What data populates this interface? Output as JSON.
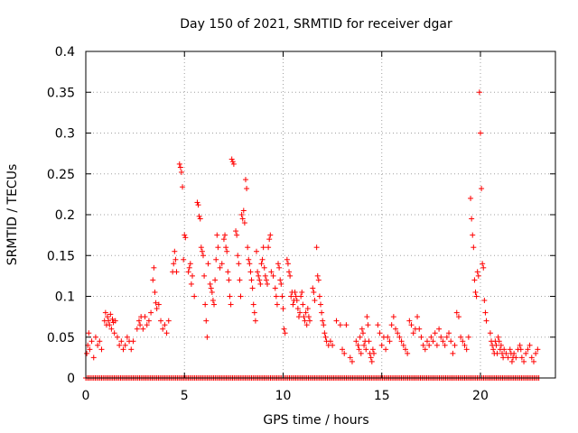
{
  "chart_data": {
    "type": "scatter",
    "title": "Day 150 of 2021, SRMTID for receiver dgar",
    "xlabel": "GPS time / hours",
    "ylabel": "SRMTID / TECUs",
    "xlim": [
      0,
      23.8
    ],
    "ylim": [
      0,
      0.4
    ],
    "xticks": [
      0,
      5,
      10,
      15,
      20
    ],
    "yticks": [
      0,
      0.05,
      0.1,
      0.15,
      0.2,
      0.25,
      0.3,
      0.35,
      0.4
    ],
    "ytick_labels": [
      "0",
      "0.05",
      "0.1",
      "0.15",
      "0.2",
      "0.25",
      "0.3",
      "0.35",
      "0.4"
    ],
    "grid": true,
    "marker": "+",
    "color": "#ff0000",
    "zero_row_range": [
      0.0,
      23.0
    ],
    "zero_row_step": 0.08,
    "series": [
      {
        "name": "SRMTID",
        "points": [
          [
            0.05,
            0.03
          ],
          [
            0.1,
            0.04
          ],
          [
            0.15,
            0.055
          ],
          [
            0.2,
            0.035
          ],
          [
            0.3,
            0.045
          ],
          [
            0.4,
            0.025
          ],
          [
            0.5,
            0.05
          ],
          [
            0.6,
            0.04
          ],
          [
            0.7,
            0.045
          ],
          [
            0.8,
            0.035
          ],
          [
            0.95,
            0.07
          ],
          [
            1.0,
            0.08
          ],
          [
            1.05,
            0.065
          ],
          [
            1.1,
            0.075
          ],
          [
            1.15,
            0.07
          ],
          [
            1.2,
            0.065
          ],
          [
            1.25,
            0.078
          ],
          [
            1.3,
            0.06
          ],
          [
            1.35,
            0.072
          ],
          [
            1.4,
            0.068
          ],
          [
            1.45,
            0.055
          ],
          [
            1.5,
            0.07
          ],
          [
            1.6,
            0.05
          ],
          [
            1.7,
            0.04
          ],
          [
            1.8,
            0.045
          ],
          [
            1.9,
            0.035
          ],
          [
            2.0,
            0.04
          ],
          [
            2.1,
            0.05
          ],
          [
            2.2,
            0.045
          ],
          [
            2.3,
            0.035
          ],
          [
            2.4,
            0.045
          ],
          [
            2.6,
            0.06
          ],
          [
            2.7,
            0.07
          ],
          [
            2.75,
            0.065
          ],
          [
            2.8,
            0.075
          ],
          [
            2.9,
            0.06
          ],
          [
            3.0,
            0.075
          ],
          [
            3.1,
            0.065
          ],
          [
            3.2,
            0.07
          ],
          [
            3.3,
            0.08
          ],
          [
            3.4,
            0.12
          ],
          [
            3.45,
            0.135
          ],
          [
            3.5,
            0.105
          ],
          [
            3.55,
            0.092
          ],
          [
            3.6,
            0.085
          ],
          [
            3.7,
            0.09
          ],
          [
            3.8,
            0.07
          ],
          [
            3.9,
            0.06
          ],
          [
            4.0,
            0.065
          ],
          [
            4.1,
            0.055
          ],
          [
            4.2,
            0.07
          ],
          [
            4.4,
            0.13
          ],
          [
            4.45,
            0.14
          ],
          [
            4.5,
            0.155
          ],
          [
            4.55,
            0.145
          ],
          [
            4.6,
            0.13
          ],
          [
            4.75,
            0.262
          ],
          [
            4.8,
            0.258
          ],
          [
            4.85,
            0.252
          ],
          [
            4.9,
            0.234
          ],
          [
            4.95,
            0.145
          ],
          [
            5.0,
            0.175
          ],
          [
            5.05,
            0.172
          ],
          [
            5.2,
            0.13
          ],
          [
            5.25,
            0.135
          ],
          [
            5.3,
            0.14
          ],
          [
            5.35,
            0.115
          ],
          [
            5.4,
            0.125
          ],
          [
            5.5,
            0.1
          ],
          [
            5.65,
            0.215
          ],
          [
            5.7,
            0.212
          ],
          [
            5.75,
            0.198
          ],
          [
            5.8,
            0.195
          ],
          [
            5.85,
            0.16
          ],
          [
            5.9,
            0.155
          ],
          [
            5.95,
            0.15
          ],
          [
            6.0,
            0.125
          ],
          [
            6.05,
            0.09
          ],
          [
            6.1,
            0.07
          ],
          [
            6.15,
            0.05
          ],
          [
            6.2,
            0.14
          ],
          [
            6.3,
            0.115
          ],
          [
            6.35,
            0.11
          ],
          [
            6.4,
            0.105
          ],
          [
            6.45,
            0.095
          ],
          [
            6.5,
            0.09
          ],
          [
            6.55,
            0.12
          ],
          [
            6.6,
            0.145
          ],
          [
            6.65,
            0.175
          ],
          [
            6.7,
            0.16
          ],
          [
            6.8,
            0.135
          ],
          [
            6.9,
            0.14
          ],
          [
            7.0,
            0.17
          ],
          [
            7.05,
            0.175
          ],
          [
            7.1,
            0.16
          ],
          [
            7.15,
            0.155
          ],
          [
            7.2,
            0.13
          ],
          [
            7.25,
            0.12
          ],
          [
            7.3,
            0.1
          ],
          [
            7.35,
            0.09
          ],
          [
            7.4,
            0.268
          ],
          [
            7.45,
            0.265
          ],
          [
            7.5,
            0.262
          ],
          [
            7.6,
            0.18
          ],
          [
            7.65,
            0.175
          ],
          [
            7.7,
            0.15
          ],
          [
            7.75,
            0.14
          ],
          [
            7.8,
            0.12
          ],
          [
            7.85,
            0.1
          ],
          [
            7.9,
            0.2
          ],
          [
            7.95,
            0.195
          ],
          [
            8.0,
            0.205
          ],
          [
            8.05,
            0.19
          ],
          [
            8.1,
            0.243
          ],
          [
            8.15,
            0.232
          ],
          [
            8.2,
            0.16
          ],
          [
            8.25,
            0.145
          ],
          [
            8.3,
            0.14
          ],
          [
            8.35,
            0.13
          ],
          [
            8.4,
            0.12
          ],
          [
            8.45,
            0.11
          ],
          [
            8.5,
            0.09
          ],
          [
            8.55,
            0.08
          ],
          [
            8.6,
            0.07
          ],
          [
            8.65,
            0.155
          ],
          [
            8.7,
            0.13
          ],
          [
            8.75,
            0.125
          ],
          [
            8.8,
            0.12
          ],
          [
            8.85,
            0.115
          ],
          [
            8.9,
            0.14
          ],
          [
            8.95,
            0.145
          ],
          [
            9.0,
            0.16
          ],
          [
            9.05,
            0.135
          ],
          [
            9.1,
            0.125
          ],
          [
            9.15,
            0.12
          ],
          [
            9.2,
            0.115
          ],
          [
            9.25,
            0.16
          ],
          [
            9.3,
            0.17
          ],
          [
            9.35,
            0.175
          ],
          [
            9.4,
            0.13
          ],
          [
            9.5,
            0.125
          ],
          [
            9.6,
            0.11
          ],
          [
            9.65,
            0.1
          ],
          [
            9.7,
            0.09
          ],
          [
            9.75,
            0.14
          ],
          [
            9.8,
            0.135
          ],
          [
            9.85,
            0.12
          ],
          [
            9.9,
            0.115
          ],
          [
            9.95,
            0.1
          ],
          [
            10.0,
            0.085
          ],
          [
            10.05,
            0.06
          ],
          [
            10.1,
            0.055
          ],
          [
            10.2,
            0.145
          ],
          [
            10.25,
            0.14
          ],
          [
            10.3,
            0.13
          ],
          [
            10.35,
            0.125
          ],
          [
            10.4,
            0.1
          ],
          [
            10.45,
            0.105
          ],
          [
            10.5,
            0.09
          ],
          [
            10.55,
            0.095
          ],
          [
            10.6,
            0.105
          ],
          [
            10.65,
            0.1
          ],
          [
            10.7,
            0.095
          ],
          [
            10.75,
            0.085
          ],
          [
            10.8,
            0.075
          ],
          [
            10.85,
            0.08
          ],
          [
            10.9,
            0.1
          ],
          [
            10.95,
            0.105
          ],
          [
            11.0,
            0.09
          ],
          [
            11.05,
            0.075
          ],
          [
            11.1,
            0.07
          ],
          [
            11.15,
            0.08
          ],
          [
            11.2,
            0.065
          ],
          [
            11.25,
            0.085
          ],
          [
            11.3,
            0.075
          ],
          [
            11.35,
            0.07
          ],
          [
            11.5,
            0.11
          ],
          [
            11.55,
            0.105
          ],
          [
            11.6,
            0.095
          ],
          [
            11.7,
            0.16
          ],
          [
            11.75,
            0.125
          ],
          [
            11.8,
            0.12
          ],
          [
            11.85,
            0.1
          ],
          [
            11.9,
            0.09
          ],
          [
            11.95,
            0.08
          ],
          [
            12.0,
            0.07
          ],
          [
            12.05,
            0.065
          ],
          [
            12.1,
            0.055
          ],
          [
            12.15,
            0.05
          ],
          [
            12.2,
            0.045
          ],
          [
            12.3,
            0.04
          ],
          [
            12.4,
            0.045
          ],
          [
            12.5,
            0.04
          ],
          [
            12.7,
            0.07
          ],
          [
            12.9,
            0.065
          ],
          [
            13.0,
            0.035
          ],
          [
            13.1,
            0.03
          ],
          [
            13.2,
            0.065
          ],
          [
            13.4,
            0.025
          ],
          [
            13.5,
            0.02
          ],
          [
            13.7,
            0.045
          ],
          [
            13.8,
            0.04
          ],
          [
            13.85,
            0.035
          ],
          [
            13.9,
            0.05
          ],
          [
            13.95,
            0.03
          ],
          [
            14.0,
            0.06
          ],
          [
            14.05,
            0.055
          ],
          [
            14.1,
            0.04
          ],
          [
            14.15,
            0.045
          ],
          [
            14.2,
            0.035
          ],
          [
            14.25,
            0.075
          ],
          [
            14.3,
            0.065
          ],
          [
            14.35,
            0.045
          ],
          [
            14.4,
            0.03
          ],
          [
            14.45,
            0.025
          ],
          [
            14.5,
            0.02
          ],
          [
            14.55,
            0.035
          ],
          [
            14.6,
            0.03
          ],
          [
            14.8,
            0.065
          ],
          [
            14.9,
            0.055
          ],
          [
            15.0,
            0.04
          ],
          [
            15.1,
            0.05
          ],
          [
            15.2,
            0.035
          ],
          [
            15.3,
            0.05
          ],
          [
            15.4,
            0.045
          ],
          [
            15.5,
            0.065
          ],
          [
            15.6,
            0.075
          ],
          [
            15.7,
            0.06
          ],
          [
            15.8,
            0.055
          ],
          [
            15.9,
            0.05
          ],
          [
            16.0,
            0.045
          ],
          [
            16.1,
            0.04
          ],
          [
            16.2,
            0.035
          ],
          [
            16.3,
            0.03
          ],
          [
            16.4,
            0.07
          ],
          [
            16.5,
            0.065
          ],
          [
            16.6,
            0.055
          ],
          [
            16.7,
            0.06
          ],
          [
            16.8,
            0.075
          ],
          [
            16.9,
            0.06
          ],
          [
            17.0,
            0.05
          ],
          [
            17.1,
            0.04
          ],
          [
            17.2,
            0.035
          ],
          [
            17.3,
            0.045
          ],
          [
            17.4,
            0.04
          ],
          [
            17.5,
            0.05
          ],
          [
            17.6,
            0.045
          ],
          [
            17.7,
            0.055
          ],
          [
            17.8,
            0.04
          ],
          [
            17.9,
            0.06
          ],
          [
            18.0,
            0.05
          ],
          [
            18.1,
            0.045
          ],
          [
            18.2,
            0.04
          ],
          [
            18.3,
            0.05
          ],
          [
            18.4,
            0.055
          ],
          [
            18.5,
            0.045
          ],
          [
            18.6,
            0.03
          ],
          [
            18.7,
            0.04
          ],
          [
            18.8,
            0.08
          ],
          [
            18.9,
            0.075
          ],
          [
            19.0,
            0.05
          ],
          [
            19.1,
            0.045
          ],
          [
            19.2,
            0.04
          ],
          [
            19.3,
            0.035
          ],
          [
            19.4,
            0.05
          ],
          [
            19.5,
            0.22
          ],
          [
            19.55,
            0.195
          ],
          [
            19.6,
            0.175
          ],
          [
            19.65,
            0.16
          ],
          [
            19.7,
            0.12
          ],
          [
            19.75,
            0.105
          ],
          [
            19.8,
            0.1
          ],
          [
            19.85,
            0.13
          ],
          [
            19.9,
            0.125
          ],
          [
            19.95,
            0.35
          ],
          [
            20.0,
            0.3
          ],
          [
            20.05,
            0.232
          ],
          [
            20.1,
            0.14
          ],
          [
            20.15,
            0.135
          ],
          [
            20.2,
            0.095
          ],
          [
            20.25,
            0.08
          ],
          [
            20.3,
            0.07
          ],
          [
            20.5,
            0.055
          ],
          [
            20.55,
            0.045
          ],
          [
            20.6,
            0.04
          ],
          [
            20.65,
            0.035
          ],
          [
            20.7,
            0.03
          ],
          [
            20.75,
            0.045
          ],
          [
            20.8,
            0.04
          ],
          [
            20.85,
            0.03
          ],
          [
            20.9,
            0.05
          ],
          [
            20.95,
            0.045
          ],
          [
            21.0,
            0.035
          ],
          [
            21.05,
            0.04
          ],
          [
            21.1,
            0.03
          ],
          [
            21.15,
            0.025
          ],
          [
            21.2,
            0.035
          ],
          [
            21.3,
            0.03
          ],
          [
            21.4,
            0.025
          ],
          [
            21.5,
            0.035
          ],
          [
            21.55,
            0.03
          ],
          [
            21.6,
            0.02
          ],
          [
            21.65,
            0.025
          ],
          [
            21.7,
            0.03
          ],
          [
            21.8,
            0.025
          ],
          [
            21.9,
            0.035
          ],
          [
            22.0,
            0.04
          ],
          [
            22.05,
            0.035
          ],
          [
            22.1,
            0.025
          ],
          [
            22.2,
            0.02
          ],
          [
            22.3,
            0.03
          ],
          [
            22.4,
            0.035
          ],
          [
            22.5,
            0.04
          ],
          [
            22.6,
            0.025
          ],
          [
            22.7,
            0.02
          ],
          [
            22.8,
            0.03
          ],
          [
            22.9,
            0.035
          ]
        ]
      }
    ]
  }
}
